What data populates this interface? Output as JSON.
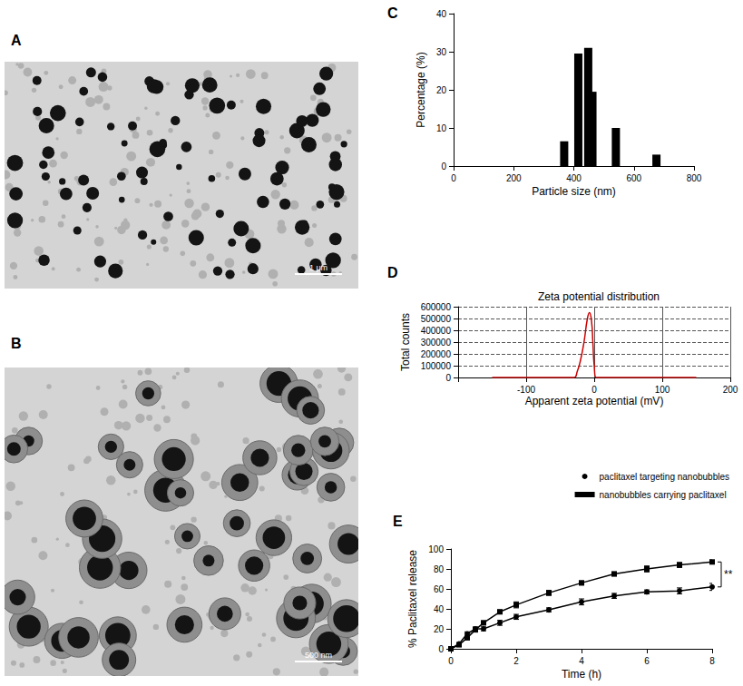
{
  "images": [
    {
      "panel": "A",
      "scale_bar": "1 μm"
    },
    {
      "panel": "B",
      "scale_bar": "500 nm"
    }
  ],
  "chart_data": [
    {
      "panel": "C",
      "type": "bar",
      "x": [
        368,
        415,
        448,
        462,
        540,
        675
      ],
      "values": [
        6.5,
        29.5,
        31,
        19.5,
        10,
        3
      ],
      "color": "#000000",
      "xlabel": "Particle size (nm)",
      "ylabel": "Percentage (%)",
      "xlim": [
        0,
        800
      ],
      "xticks": [
        0,
        200,
        400,
        600,
        800
      ],
      "ylim": [
        0,
        40
      ],
      "yticks": [
        0,
        10,
        20,
        30,
        40
      ],
      "grid": false
    },
    {
      "panel": "D",
      "type": "line",
      "title": "Zeta potential distribution",
      "x": [
        -150,
        -30,
        -25,
        -20,
        -15,
        -10,
        -7,
        -4,
        -2,
        0,
        3,
        150
      ],
      "values": [
        0,
        0,
        50000,
        150000,
        300000,
        500000,
        550000,
        480000,
        300000,
        100000,
        0,
        0
      ],
      "color": "#cc0000",
      "xlabel": "Apparent zeta potential (mV)",
      "ylabel": "Total counts",
      "xlim": [
        -200,
        200
      ],
      "xticks": [
        -100,
        0,
        100,
        200
      ],
      "ylim": [
        0,
        600000
      ],
      "yticks": [
        0,
        100000,
        200000,
        300000,
        400000,
        500000,
        600000
      ],
      "grid": true
    },
    {
      "panel": "E",
      "type": "line",
      "x": [
        0,
        0.25,
        0.5,
        0.75,
        1,
        1.5,
        2,
        3,
        4,
        5,
        6,
        7,
        8
      ],
      "series": [
        {
          "name": "paclitaxel targeting nanobubbles",
          "color": "#000000",
          "marker": "circle",
          "values": [
            0,
            5,
            15,
            20,
            20,
            26,
            32,
            39,
            47,
            53,
            57,
            58,
            62
          ],
          "errors": [
            0,
            1,
            2,
            2,
            2,
            2.5,
            2.5,
            2,
            3,
            2.5,
            2,
            3,
            3.5
          ]
        },
        {
          "name": "nanobubbles carrying paclitaxel",
          "color": "#000000",
          "marker": "square",
          "values": [
            0,
            4,
            11,
            19,
            26,
            37,
            44,
            56,
            66,
            75,
            80,
            84,
            87
          ],
          "errors": [
            0,
            1,
            1.5,
            2,
            2,
            2,
            3,
            2.5,
            2,
            2,
            3,
            2.5,
            2
          ]
        }
      ],
      "annotation": "**",
      "xlabel": "Time (h)",
      "ylabel": "% Paclitaxel release",
      "xlim": [
        0,
        8
      ],
      "xticks": [
        0,
        2,
        4,
        6,
        8
      ],
      "ylim": [
        0,
        100
      ],
      "yticks": [
        0,
        20,
        40,
        60,
        80,
        100
      ],
      "legend": "top-right"
    }
  ]
}
